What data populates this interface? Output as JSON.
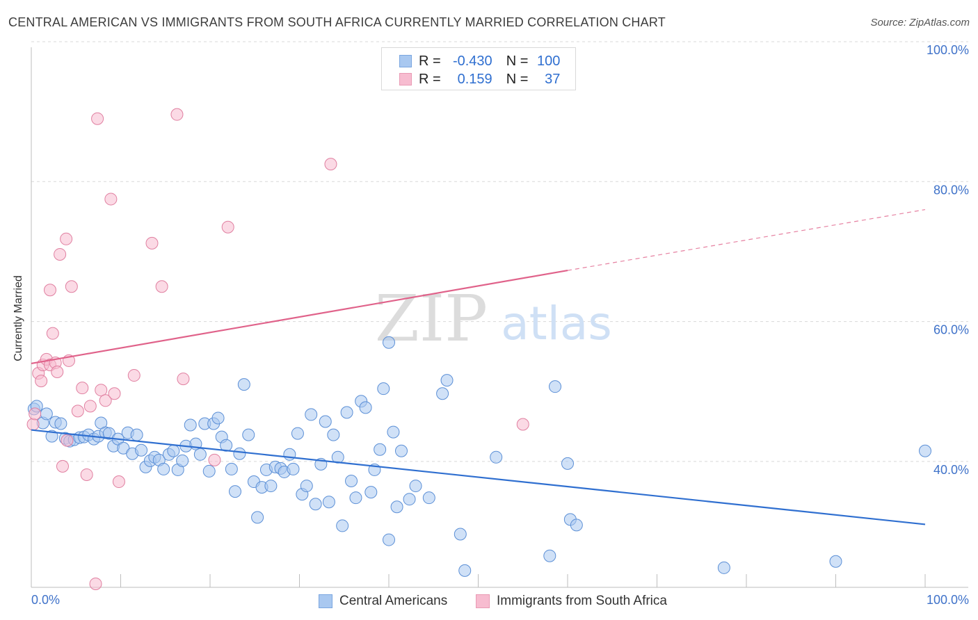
{
  "title": "CENTRAL AMERICAN VS IMMIGRANTS FROM SOUTH AFRICA CURRENTLY MARRIED CORRELATION CHART",
  "source": "Source: ZipAtlas.com",
  "watermark": {
    "zip": "ZIP",
    "atlas": "atlas"
  },
  "stats_box": {
    "rows": [
      {
        "r_label": "R =",
        "r_value": "-0.430",
        "n_label": "N =",
        "n_value": "100",
        "color": "#a9c8f0"
      },
      {
        "r_label": "R =",
        "r_value": "0.159",
        "n_label": "N =",
        "n_value": "37",
        "color": "#f7bcd0"
      }
    ]
  },
  "legend": {
    "items": [
      {
        "label": "Central Americans",
        "color": "#a9c8f0"
      },
      {
        "label": "Immigrants from South Africa",
        "color": "#f7bcd0"
      }
    ]
  },
  "chart_data": {
    "type": "scatter",
    "xlabel": "",
    "ylabel": "Currently Married",
    "xlim": [
      0,
      100
    ],
    "ylim": [
      22,
      100
    ],
    "x_tick_labels": [
      "0.0%",
      "100.0%"
    ],
    "y_tick_labels": [
      "40.0%",
      "60.0%",
      "80.0%",
      "100.0%"
    ],
    "y_ticks": [
      40,
      60,
      80,
      100
    ],
    "grid": "horizontal dashed",
    "legend_position": "bottom",
    "series": [
      {
        "name": "Central Americans",
        "color": "#a9c8f0",
        "stroke": "#5b8fd6",
        "trend": {
          "x": [
            0,
            100
          ],
          "y": [
            44.5,
            31.0
          ],
          "color": "#2f6fd0"
        },
        "points": [
          [
            0.3,
            47.5
          ],
          [
            0.6,
            47.9
          ],
          [
            1.3,
            45.5
          ],
          [
            1.7,
            46.8
          ],
          [
            2.3,
            43.6
          ],
          [
            2.7,
            45.6
          ],
          [
            3.3,
            45.4
          ],
          [
            3.8,
            43.3
          ],
          [
            4.3,
            42.9
          ],
          [
            4.8,
            43.1
          ],
          [
            5.4,
            43.4
          ],
          [
            5.9,
            43.5
          ],
          [
            6.4,
            43.8
          ],
          [
            7.0,
            43.2
          ],
          [
            7.5,
            43.6
          ],
          [
            7.8,
            45.5
          ],
          [
            8.3,
            44.1
          ],
          [
            8.7,
            44.0
          ],
          [
            9.2,
            42.2
          ],
          [
            9.7,
            43.2
          ],
          [
            10.3,
            41.9
          ],
          [
            10.8,
            44.1
          ],
          [
            11.3,
            41.1
          ],
          [
            11.8,
            43.8
          ],
          [
            12.3,
            41.6
          ],
          [
            12.8,
            39.2
          ],
          [
            13.3,
            40.1
          ],
          [
            13.8,
            40.6
          ],
          [
            14.3,
            40.2
          ],
          [
            14.8,
            38.9
          ],
          [
            15.4,
            41.0
          ],
          [
            15.9,
            41.5
          ],
          [
            16.4,
            38.8
          ],
          [
            16.9,
            40.1
          ],
          [
            17.3,
            42.2
          ],
          [
            17.8,
            45.2
          ],
          [
            18.4,
            42.5
          ],
          [
            18.9,
            41.0
          ],
          [
            19.4,
            45.4
          ],
          [
            19.9,
            38.6
          ],
          [
            20.4,
            45.4
          ],
          [
            20.9,
            46.2
          ],
          [
            21.3,
            43.5
          ],
          [
            21.8,
            42.3
          ],
          [
            22.4,
            38.9
          ],
          [
            22.8,
            35.7
          ],
          [
            23.3,
            41.1
          ],
          [
            23.8,
            51.0
          ],
          [
            24.3,
            43.8
          ],
          [
            24.9,
            37.1
          ],
          [
            25.3,
            32.0
          ],
          [
            25.8,
            36.3
          ],
          [
            26.3,
            38.8
          ],
          [
            26.8,
            36.5
          ],
          [
            27.3,
            39.2
          ],
          [
            27.9,
            39.0
          ],
          [
            28.3,
            38.5
          ],
          [
            28.9,
            41.0
          ],
          [
            29.3,
            38.9
          ],
          [
            29.8,
            44.0
          ],
          [
            30.3,
            35.3
          ],
          [
            30.8,
            36.5
          ],
          [
            31.3,
            46.7
          ],
          [
            31.8,
            33.9
          ],
          [
            32.4,
            39.6
          ],
          [
            32.9,
            45.7
          ],
          [
            33.3,
            34.2
          ],
          [
            33.8,
            43.8
          ],
          [
            34.3,
            40.6
          ],
          [
            34.8,
            30.8
          ],
          [
            35.3,
            47.0
          ],
          [
            35.8,
            37.2
          ],
          [
            36.3,
            34.8
          ],
          [
            36.9,
            48.6
          ],
          [
            37.4,
            47.7
          ],
          [
            38.0,
            35.6
          ],
          [
            38.4,
            38.8
          ],
          [
            39.0,
            41.7
          ],
          [
            39.4,
            50.4
          ],
          [
            40.0,
            28.8
          ],
          [
            40.5,
            44.2
          ],
          [
            40.9,
            33.5
          ],
          [
            41.4,
            41.5
          ],
          [
            42.3,
            34.6
          ],
          [
            43.0,
            36.5
          ],
          [
            44.5,
            34.8
          ],
          [
            46.0,
            49.7
          ],
          [
            46.5,
            51.6
          ],
          [
            48.0,
            29.6
          ],
          [
            48.5,
            24.4
          ],
          [
            52.0,
            40.6
          ],
          [
            58.0,
            26.5
          ],
          [
            58.6,
            50.7
          ],
          [
            60.0,
            39.7
          ],
          [
            60.3,
            31.7
          ],
          [
            61.0,
            30.9
          ],
          [
            77.5,
            24.8
          ],
          [
            90.0,
            25.7
          ],
          [
            100.0,
            41.5
          ],
          [
            40.0,
            57.0
          ]
        ]
      },
      {
        "name": "Immigrants from South Africa",
        "color": "#f7bcd0",
        "stroke": "#e07fa0",
        "trend": {
          "x": [
            0,
            60
          ],
          "y": [
            54.0,
            67.3
          ],
          "color": "#e0628a",
          "dashed_extension": {
            "x": [
              60,
              100
            ],
            "y": [
              67.3,
              76.0
            ]
          }
        },
        "points": [
          [
            0.2,
            45.3
          ],
          [
            0.4,
            46.8
          ],
          [
            0.8,
            52.6
          ],
          [
            1.1,
            51.5
          ],
          [
            1.3,
            53.8
          ],
          [
            1.7,
            54.6
          ],
          [
            2.1,
            53.8
          ],
          [
            2.1,
            64.5
          ],
          [
            2.4,
            58.3
          ],
          [
            2.7,
            54.1
          ],
          [
            2.9,
            52.8
          ],
          [
            3.2,
            69.6
          ],
          [
            3.5,
            39.3
          ],
          [
            3.9,
            71.8
          ],
          [
            4.2,
            54.4
          ],
          [
            4.5,
            65.0
          ],
          [
            5.2,
            47.2
          ],
          [
            5.7,
            50.5
          ],
          [
            6.2,
            38.1
          ],
          [
            6.6,
            47.9
          ],
          [
            7.2,
            22.5
          ],
          [
            7.4,
            89.0
          ],
          [
            7.8,
            50.2
          ],
          [
            8.3,
            48.7
          ],
          [
            8.9,
            77.5
          ],
          [
            9.3,
            49.7
          ],
          [
            9.8,
            37.1
          ],
          [
            11.5,
            52.3
          ],
          [
            13.5,
            71.2
          ],
          [
            14.6,
            65.0
          ],
          [
            16.3,
            89.6
          ],
          [
            17.0,
            51.8
          ],
          [
            20.5,
            40.2
          ],
          [
            22.0,
            73.5
          ],
          [
            33.5,
            82.5
          ],
          [
            55.0,
            45.3
          ],
          [
            4.0,
            43.0
          ]
        ]
      }
    ]
  }
}
